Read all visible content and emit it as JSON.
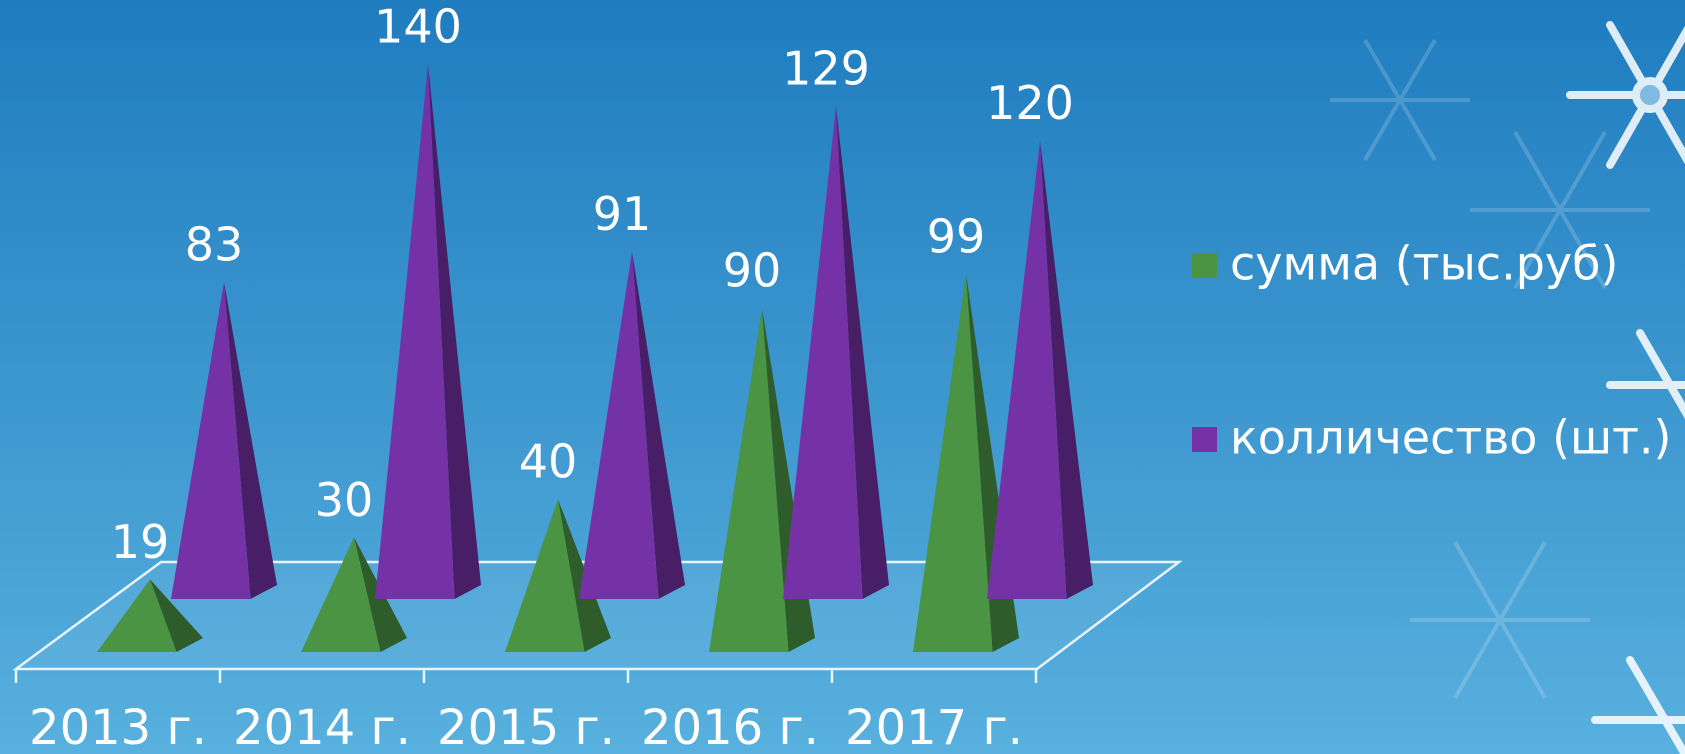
{
  "chart_data": {
    "type": "pyramid3d",
    "categories": [
      "2013 г.",
      "2014 г.",
      "2015 г.",
      "2016 г.",
      "2017 г."
    ],
    "series": [
      {
        "name": "сумма (тыс.руб)",
        "color": "#4a9444",
        "values": [
          19,
          30,
          40,
          90,
          99
        ]
      },
      {
        "name": "колличество (шт.)",
        "color": "#7432a6",
        "values": [
          83,
          140,
          91,
          129,
          120
        ]
      }
    ],
    "legend": "right"
  }
}
